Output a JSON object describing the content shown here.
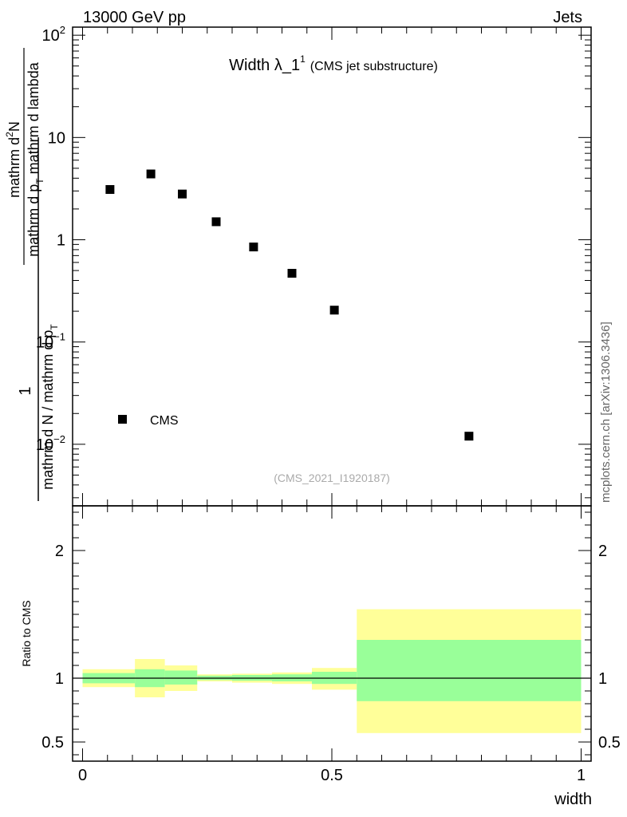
{
  "header": {
    "left": "13000 GeV pp",
    "right": "Jets"
  },
  "title": {
    "main": "Width λ_1",
    "sup": "1",
    "sub": "(CMS jet substructure)"
  },
  "watermark_id": "(CMS_2021_I1920187)",
  "side_label": "mcplots.cern.ch [arXiv:1306.3436]",
  "ylabel_top": {
    "numerator_one": "1",
    "denominator": "mathrm d N / mathrm d p_T",
    "denominator_parts": [
      "mathrm d N / mathrm d p",
      "T"
    ],
    "numerator_parts": [
      "mathrm d",
      "2",
      "N"
    ],
    "frac2_denominator_parts": [
      "mathrm d p",
      "T",
      " mathrm d lambda"
    ]
  },
  "ylabel_bottom": "Ratio to CMS",
  "xlabel": "width",
  "legend": {
    "label": "CMS"
  },
  "colors": {
    "yellow_band": "#ffff99",
    "green_band": "#99ff99",
    "marker": "#000000"
  },
  "chart_data": [
    {
      "type": "scatter",
      "panel": "main",
      "log_y": true,
      "xlim": [
        -0.02,
        1.02
      ],
      "ylim": [
        0.0025,
        120
      ],
      "y_ticks": [
        {
          "value": 0.01,
          "base": "10",
          "exp": "−2"
        },
        {
          "value": 0.1,
          "base": "10",
          "exp": "−1"
        },
        {
          "value": 1,
          "base": "1",
          "exp": ""
        },
        {
          "value": 10,
          "base": "10",
          "exp": ""
        },
        {
          "value": 100,
          "base": "10",
          "exp": "2"
        }
      ],
      "series": [
        {
          "name": "CMS",
          "x": [
            0.055,
            0.137,
            0.2,
            0.268,
            0.343,
            0.42,
            0.505,
            0.775
          ],
          "y": [
            3.1,
            4.4,
            2.8,
            1.5,
            0.85,
            0.47,
            0.205,
            0.012
          ]
        }
      ]
    },
    {
      "type": "area",
      "panel": "ratio",
      "xlim": [
        -0.02,
        1.02
      ],
      "ylim": [
        0.35,
        2.35
      ],
      "y_ticks": [
        "0.5",
        "1",
        "2"
      ],
      "x_ticks": [
        "0",
        "0.5",
        "1"
      ],
      "reference_line": 1,
      "bins": [
        {
          "x0": 0.0,
          "x1": 0.105,
          "green": [
            0.96,
            1.04
          ],
          "yellow": [
            0.93,
            1.07
          ]
        },
        {
          "x0": 0.105,
          "x1": 0.165,
          "green": [
            0.93,
            1.07
          ],
          "yellow": [
            0.85,
            1.15
          ]
        },
        {
          "x0": 0.165,
          "x1": 0.23,
          "green": [
            0.95,
            1.06
          ],
          "yellow": [
            0.9,
            1.1
          ]
        },
        {
          "x0": 0.23,
          "x1": 0.3,
          "green": [
            0.985,
            1.02
          ],
          "yellow": [
            0.975,
            1.03
          ]
        },
        {
          "x0": 0.3,
          "x1": 0.38,
          "green": [
            0.98,
            1.025
          ],
          "yellow": [
            0.965,
            1.035
          ]
        },
        {
          "x0": 0.38,
          "x1": 0.46,
          "green": [
            0.975,
            1.03
          ],
          "yellow": [
            0.955,
            1.045
          ]
        },
        {
          "x0": 0.46,
          "x1": 0.55,
          "green": [
            0.955,
            1.05
          ],
          "yellow": [
            0.91,
            1.08
          ]
        },
        {
          "x0": 0.55,
          "x1": 1.0,
          "green": [
            0.82,
            1.3
          ],
          "yellow": [
            0.57,
            1.54
          ]
        }
      ]
    }
  ]
}
